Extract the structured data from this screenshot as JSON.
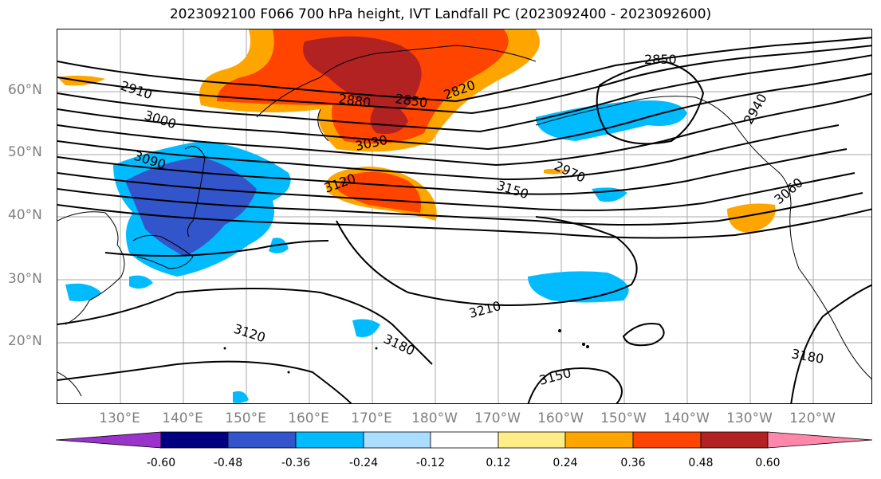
{
  "title": "2023092100 F066 700 hPa height, IVT Landfall PC (2023092400 - 2023092600)",
  "lat_labels": [
    "60°N",
    "50°N",
    "40°N",
    "30°N",
    "20°N"
  ],
  "lon_labels": [
    "130°E",
    "140°E",
    "150°E",
    "160°E",
    "170°E",
    "180°W",
    "170°W",
    "160°W",
    "150°W",
    "140°W",
    "130°W",
    "120°W"
  ],
  "contour_labels": [
    "2910",
    "3000",
    "3090",
    "2880",
    "2850",
    "2820",
    "2850",
    "3030",
    "3120",
    "2970",
    "3150",
    "2940",
    "3060",
    "3210",
    "3180",
    "3120",
    "3150",
    "3180"
  ],
  "colorbar": {
    "ticks": [
      "-0.60",
      "-0.48",
      "-0.36",
      "-0.24",
      "-0.12",
      "0.12",
      "0.24",
      "0.36",
      "0.48",
      "0.60"
    ],
    "colors": [
      "#9933cc",
      "#000080",
      "#3355cc",
      "#00bbff",
      "#aaddff",
      "#ffffff",
      "#ffee88",
      "#ffa500",
      "#ff4400",
      "#b22222",
      "#ff88aa"
    ]
  }
}
